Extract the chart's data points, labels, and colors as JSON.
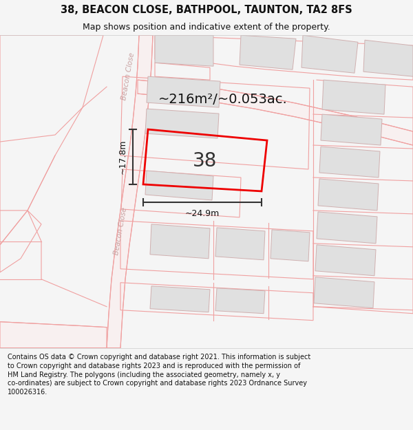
{
  "title_line1": "38, BEACON CLOSE, BATHPOOL, TAUNTON, TA2 8FS",
  "title_line2": "Map shows position and indicative extent of the property.",
  "footer_lines": [
    "Contains OS data © Crown copyright and database right 2021. This information is subject",
    "to Crown copyright and database rights 2023 and is reproduced with the permission of",
    "HM Land Registry. The polygons (including the associated geometry, namely x, y",
    "co-ordinates) are subject to Crown copyright and database rights 2023 Ordnance Survey",
    "100026316."
  ],
  "area_label": "~216m²/~0.053ac.",
  "property_number": "38",
  "width_label": "~24.9m",
  "height_label": "~17.8m",
  "background_color": "#f5f5f5",
  "map_bg_color": "#ffffff",
  "road_color": "#f0a0a0",
  "plot_outline_color": "#f0b0b0",
  "building_fill_color": "#e0e0e0",
  "building_edge_color": "#d0b0b0",
  "highlight_color": "#ee0000",
  "title_fontsize": 10.5,
  "subtitle_fontsize": 9,
  "footer_fontsize": 7.0,
  "area_label_fontsize": 14,
  "number_fontsize": 20,
  "dim_fontsize": 9
}
